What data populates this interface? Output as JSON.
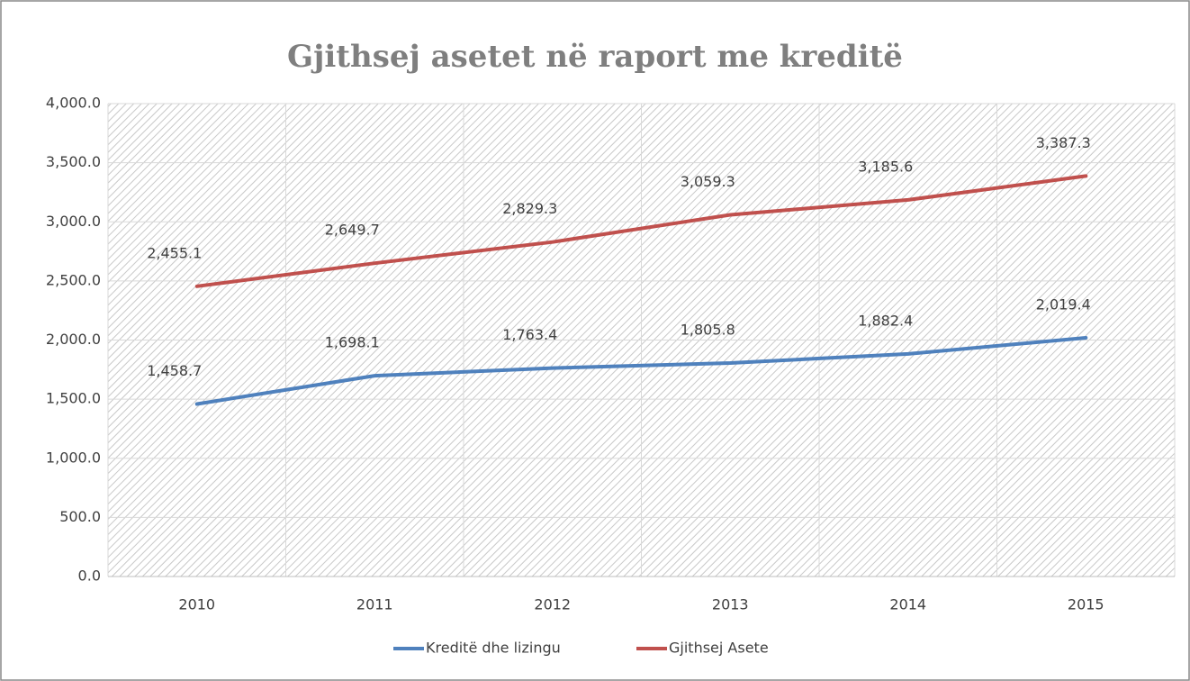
{
  "chart_data": {
    "type": "line",
    "title": "Gjithsej asetet në raport me kreditë",
    "categories": [
      "2010",
      "2011",
      "2012",
      "2013",
      "2014",
      "2015"
    ],
    "series": [
      {
        "name": "Kreditë dhe lizingu",
        "color": "#4f81bd",
        "values": [
          1458.7,
          1698.1,
          1763.4,
          1805.8,
          1882.4,
          2019.4
        ],
        "value_labels": [
          "1,458.7",
          "1,698.1",
          "1,763.4",
          "1,805.8",
          "1,882.4",
          "2,019.4"
        ]
      },
      {
        "name": "Gjithsej Asete",
        "color": "#c0504d",
        "values": [
          2455.1,
          2649.7,
          2829.3,
          3059.3,
          3185.6,
          3387.3
        ],
        "value_labels": [
          "2,455.1",
          "2,649.7",
          "2,829.3",
          "3,059.3",
          "3,185.6",
          "3,387.3"
        ]
      }
    ],
    "ylim": [
      0,
      4000
    ],
    "yticks": [
      {
        "value": 0,
        "label": "0.0"
      },
      {
        "value": 500,
        "label": "500.0"
      },
      {
        "value": 1000,
        "label": "1,000.0"
      },
      {
        "value": 1500,
        "label": "1,500.0"
      },
      {
        "value": 2000,
        "label": "2,000.0"
      },
      {
        "value": 2500,
        "label": "2,500.0"
      },
      {
        "value": 3000,
        "label": "3,000.0"
      },
      {
        "value": 3500,
        "label": "3,500.0"
      },
      {
        "value": 4000,
        "label": "4,000.0"
      }
    ],
    "grid": true,
    "legend": "bottom"
  }
}
